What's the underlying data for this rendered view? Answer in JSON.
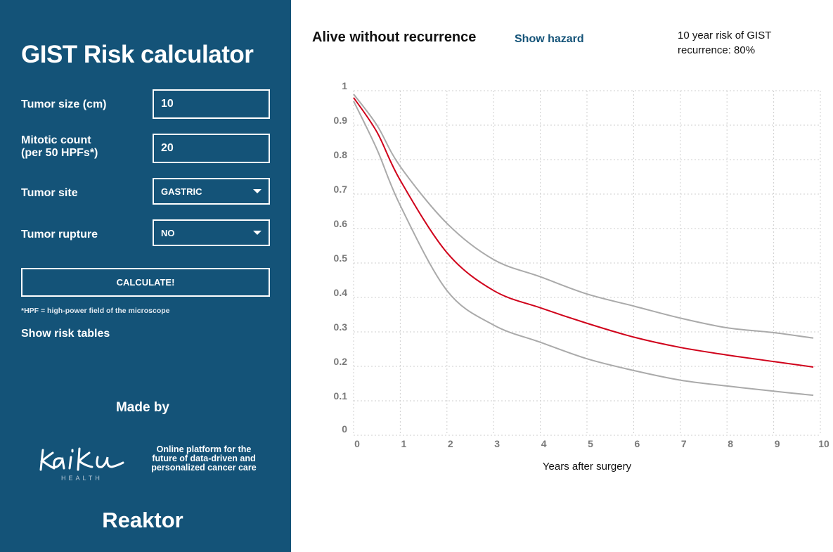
{
  "sidebar": {
    "title": "GIST Risk calculator",
    "fields": [
      {
        "label": "Tumor size (cm)",
        "value": "10"
      },
      {
        "label": "Mitotic count",
        "label2": "(per 50 HPFs*)",
        "value": "20"
      },
      {
        "label": "Tumor site",
        "value": "GASTRIC"
      },
      {
        "label": "Tumor rupture",
        "value": "NO"
      }
    ],
    "calculate_label": "CALCULATE!",
    "footnote": "*HPF = high-power field of the microscope",
    "show_risk_tables": "Show risk tables",
    "made_by": "Made by",
    "kaiku_logo": "Kaiku",
    "kaiku_sub": "HEALTH",
    "kaiku_tagline": "Online platform for the future of data-driven and personalized cancer care",
    "reaktor_logo": "Reaktor"
  },
  "main": {
    "title": "Alive without recurrence",
    "show_hazard": "Show hazard",
    "risk_text": "10 year risk of GIST recurrence: 80%"
  },
  "colors": {
    "sidebar": "#145378",
    "estimate": "#d0021b",
    "interval": "#aaaaaa"
  },
  "chart_data": {
    "type": "line",
    "xlabel": "Years after surgery",
    "ylabel": "",
    "xlim": [
      0,
      10
    ],
    "ylim": [
      0,
      1
    ],
    "xticks": [
      "0",
      "1",
      "2",
      "3",
      "4",
      "5",
      "6",
      "7",
      "8",
      "9",
      "10"
    ],
    "yticks": [
      "0",
      "0.1",
      "0.2",
      "0.3",
      "0.4",
      "0.5",
      "0.6",
      "0.7",
      "0.8",
      "0.9",
      "1"
    ],
    "grid": true,
    "x": [
      0,
      0.5,
      1,
      2,
      3,
      4,
      5,
      6,
      7,
      8,
      9,
      9.85
    ],
    "series": [
      {
        "role": "upper",
        "color": "#aaaaaa",
        "values": [
          0.99,
          0.9,
          0.78,
          0.615,
          0.51,
          0.46,
          0.41,
          0.375,
          0.34,
          0.312,
          0.298,
          0.282
        ]
      },
      {
        "role": "estimate",
        "color": "#d0021b",
        "values": [
          0.98,
          0.88,
          0.74,
          0.53,
          0.42,
          0.37,
          0.325,
          0.285,
          0.255,
          0.233,
          0.214,
          0.198
        ]
      },
      {
        "role": "lower",
        "color": "#aaaaaa",
        "values": [
          0.97,
          0.83,
          0.667,
          0.42,
          0.32,
          0.27,
          0.222,
          0.188,
          0.16,
          0.143,
          0.128,
          0.116
        ]
      }
    ]
  }
}
